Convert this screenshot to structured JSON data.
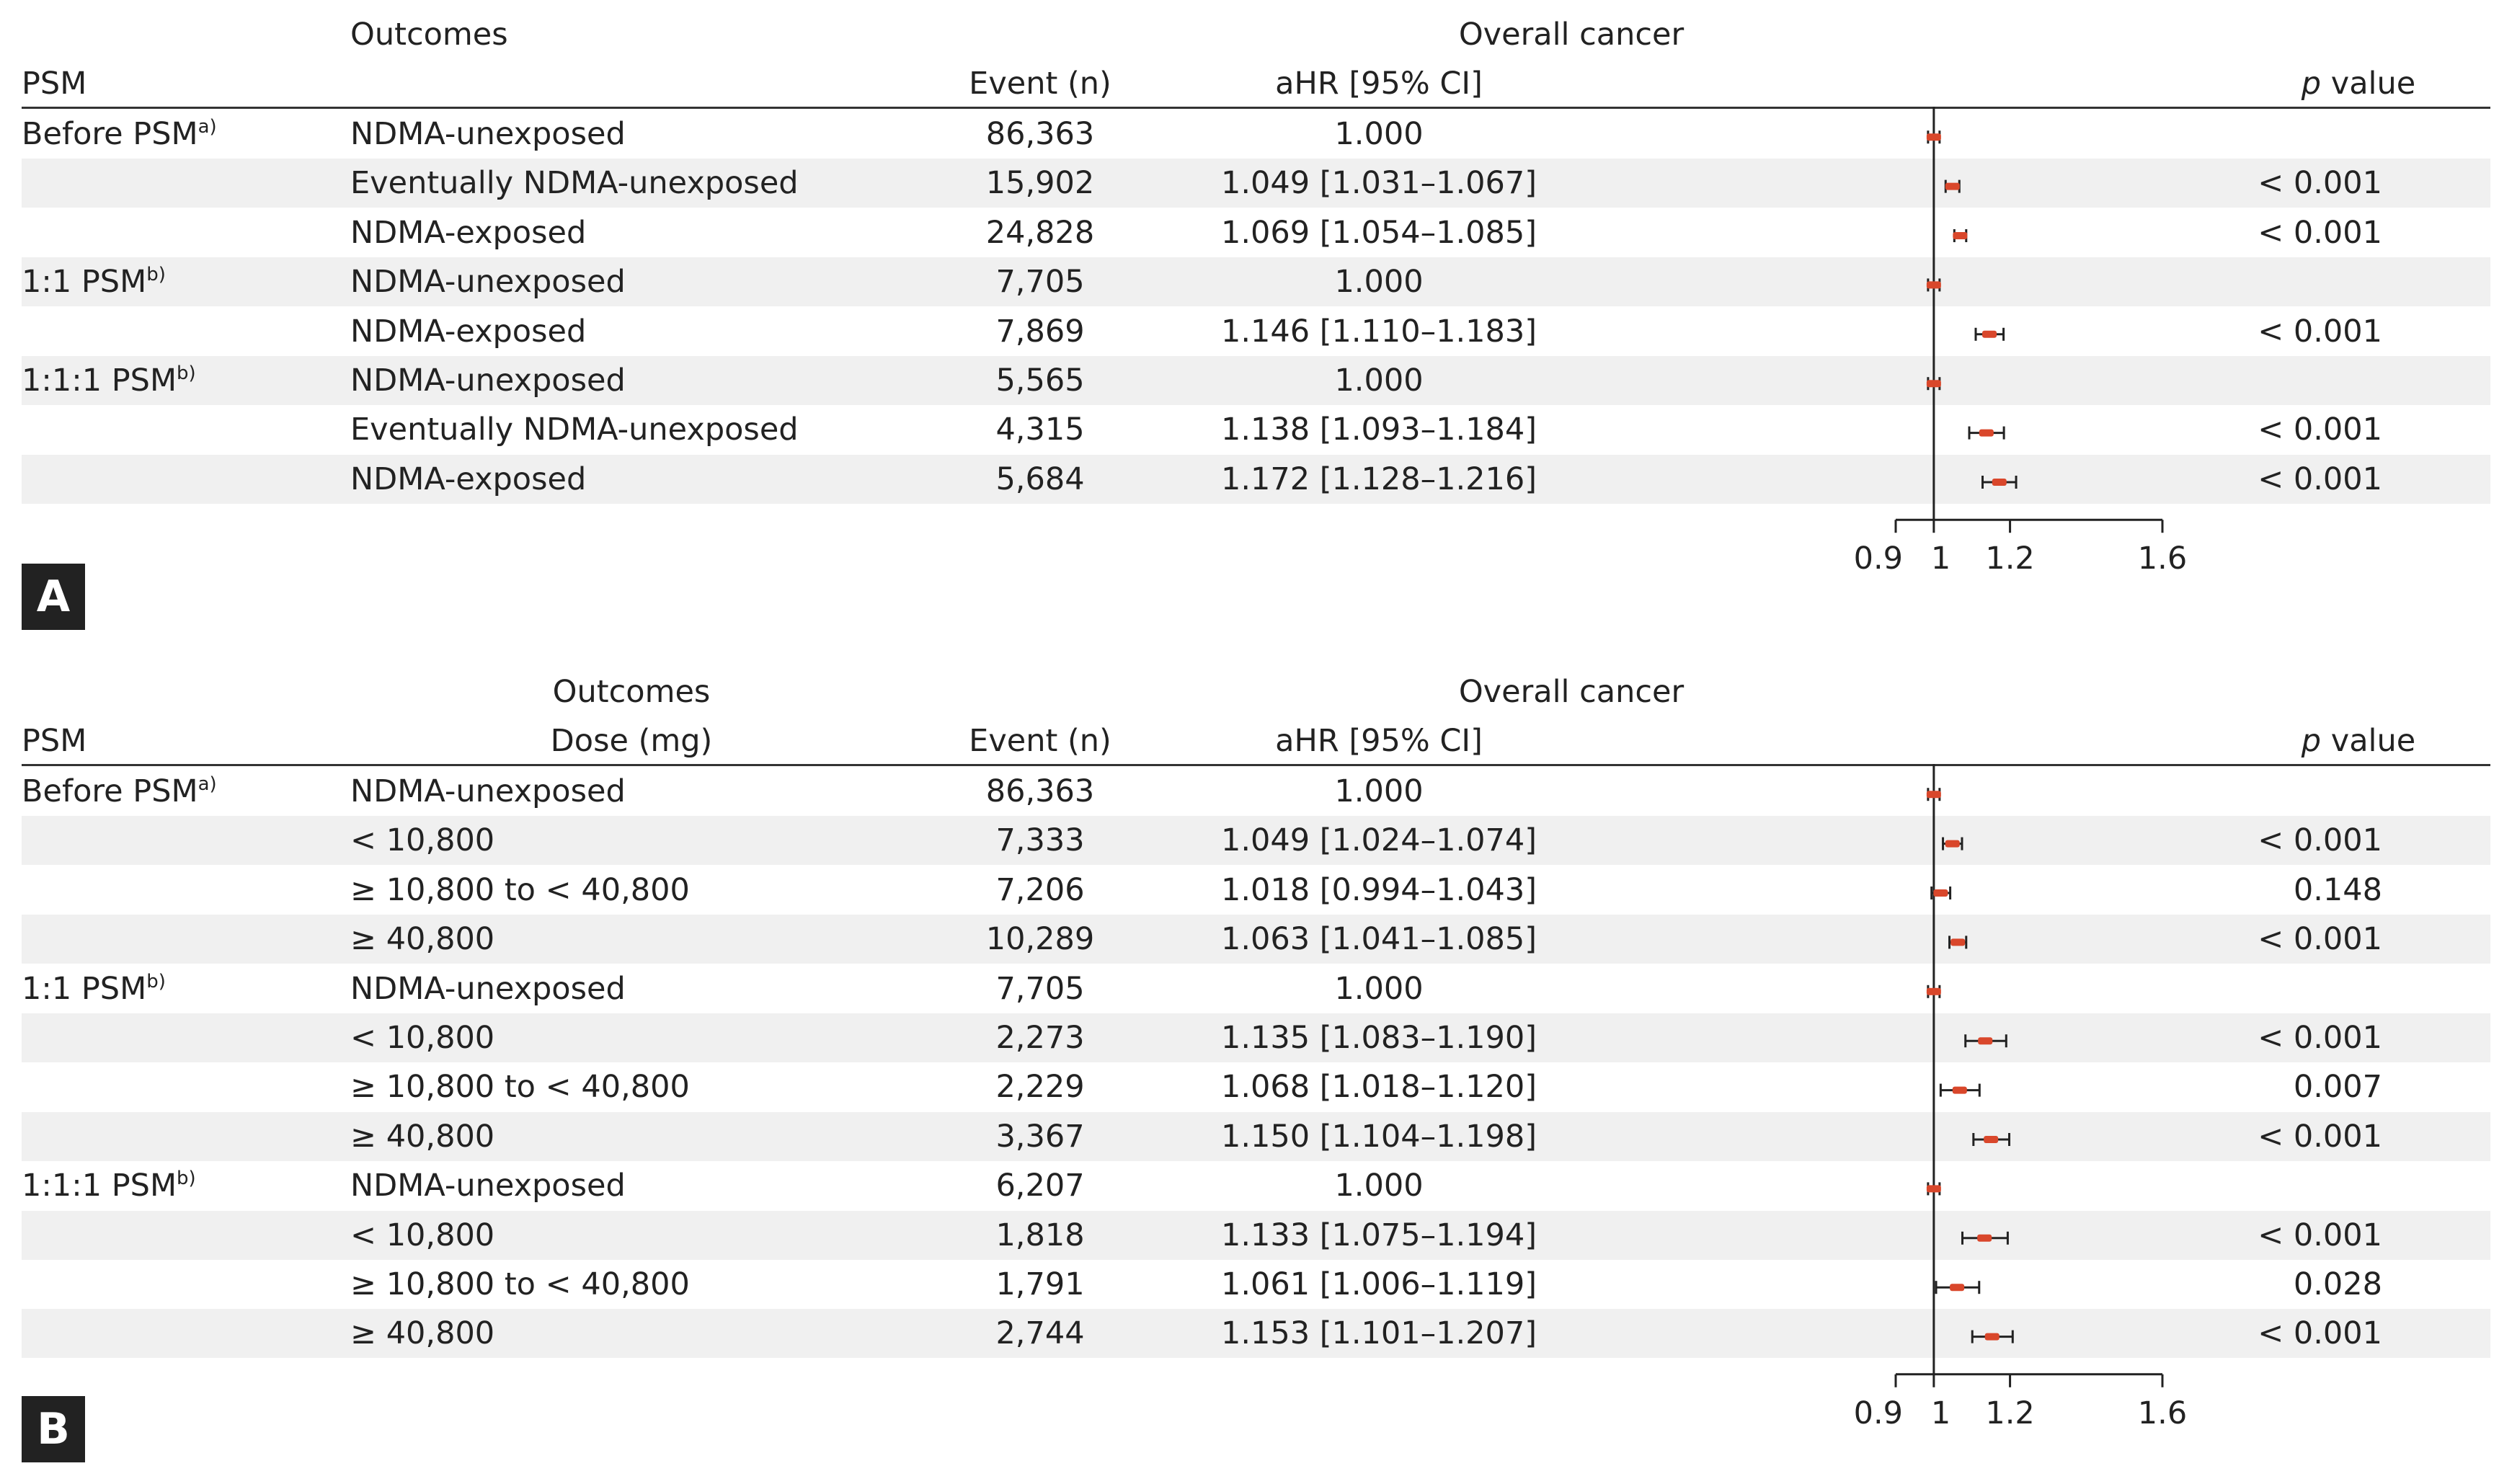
{
  "panels": [
    {
      "tag": "A",
      "headers": {
        "psm": "PSM",
        "outcomes": "Outcomes",
        "outcomes_sub": "",
        "event": "Event (n)",
        "outcome_group": "Overall cancer",
        "ahr": "aHR [95% CI]",
        "p_italic": "p",
        "p_rest": " value"
      },
      "rows": [
        {
          "psm": "Before PSM",
          "sup": "a)",
          "label": "NDMA-unexposed",
          "event": "86,363",
          "ahr": "1.000",
          "p": "",
          "shaded": false
        },
        {
          "psm": "",
          "sup": "",
          "label": "Eventually NDMA-unexposed",
          "event": "15,902",
          "ahr": "1.049 [1.031–1.067]",
          "p": "< 0.001",
          "shaded": true
        },
        {
          "psm": "",
          "sup": "",
          "label": "NDMA-exposed",
          "event": "24,828",
          "ahr": "1.069 [1.054–1.085]",
          "p": "< 0.001",
          "shaded": false
        },
        {
          "psm": "1:1 PSM",
          "sup": "b)",
          "label": "NDMA-unexposed",
          "event": "7,705",
          "ahr": "1.000",
          "p": "",
          "shaded": true
        },
        {
          "psm": "",
          "sup": "",
          "label": "NDMA-exposed",
          "event": "7,869",
          "ahr": "1.146 [1.110–1.183]",
          "p": "< 0.001",
          "shaded": false
        },
        {
          "psm": "1:1:1 PSM",
          "sup": "b)",
          "label": "NDMA-unexposed",
          "event": "5,565",
          "ahr": "1.000",
          "p": "",
          "shaded": true
        },
        {
          "psm": "",
          "sup": "",
          "label": "Eventually NDMA-unexposed",
          "event": "4,315",
          "ahr": "1.138 [1.093–1.184]",
          "p": "< 0.001",
          "shaded": false
        },
        {
          "psm": "",
          "sup": "",
          "label": "NDMA-exposed",
          "event": "5,684",
          "ahr": "1.172 [1.128–1.216]",
          "p": "< 0.001",
          "shaded": true
        }
      ]
    },
    {
      "tag": "B",
      "headers": {
        "psm": "PSM",
        "outcomes": "Outcomes",
        "outcomes_sub": "Dose (mg)",
        "event": "Event (n)",
        "outcome_group": "Overall cancer",
        "ahr": "aHR [95% CI]",
        "p_italic": "p",
        "p_rest": " value"
      },
      "rows": [
        {
          "psm": "Before PSM",
          "sup": "a)",
          "label": "NDMA-unexposed",
          "event": "86,363",
          "ahr": "1.000",
          "p": "",
          "shaded": false
        },
        {
          "psm": "",
          "sup": "",
          "label": "< 10,800",
          "event": "7,333",
          "ahr": "1.049 [1.024–1.074]",
          "p": "< 0.001",
          "shaded": true
        },
        {
          "psm": "",
          "sup": "",
          "label": "≥ 10,800 to < 40,800",
          "event": "7,206",
          "ahr": "1.018 [0.994–1.043]",
          "p": "0.148",
          "shaded": false
        },
        {
          "psm": "",
          "sup": "",
          "label": "≥ 40,800",
          "event": "10,289",
          "ahr": "1.063 [1.041–1.085]",
          "p": "< 0.001",
          "shaded": true
        },
        {
          "psm": "1:1 PSM",
          "sup": "b)",
          "label": "NDMA-unexposed",
          "event": "7,705",
          "ahr": "1.000",
          "p": "",
          "shaded": false
        },
        {
          "psm": "",
          "sup": "",
          "label": "< 10,800",
          "event": "2,273",
          "ahr": "1.135 [1.083–1.190]",
          "p": "< 0.001",
          "shaded": true
        },
        {
          "psm": "",
          "sup": "",
          "label": "≥ 10,800 to < 40,800",
          "event": "2,229",
          "ahr": "1.068 [1.018–1.120]",
          "p": "0.007",
          "shaded": false
        },
        {
          "psm": "",
          "sup": "",
          "label": "≥ 40,800",
          "event": "3,367",
          "ahr": "1.150 [1.104–1.198]",
          "p": "< 0.001",
          "shaded": true
        },
        {
          "psm": "1:1:1 PSM",
          "sup": "b)",
          "label": "NDMA-unexposed",
          "event": "6,207",
          "ahr": "1.000",
          "p": "",
          "shaded": false
        },
        {
          "psm": "",
          "sup": "",
          "label": "< 10,800",
          "event": "1,818",
          "ahr": "1.133 [1.075–1.194]",
          "p": "< 0.001",
          "shaded": true
        },
        {
          "psm": "",
          "sup": "",
          "label": "≥ 10,800 to < 40,800",
          "event": "1,791",
          "ahr": "1.061 [1.006–1.119]",
          "p": "0.028",
          "shaded": false
        },
        {
          "psm": "",
          "sup": "",
          "label": "≥ 40,800",
          "event": "2,744",
          "ahr": "1.153 [1.101–1.207]",
          "p": "< 0.001",
          "shaded": true
        }
      ]
    }
  ],
  "chart_data": [
    {
      "type": "forest",
      "panel": "A",
      "xlim": [
        0.9,
        1.6
      ],
      "ticks": [
        0.9,
        1,
        1.2,
        1.6
      ],
      "tick_labels": [
        "0.9",
        "1",
        "1.2",
        "1.6"
      ],
      "reference_line": 1.0,
      "marker_color": "#d9472b",
      "points": [
        {
          "est": 1.0,
          "lo": 1.0,
          "hi": 1.0
        },
        {
          "est": 1.049,
          "lo": 1.031,
          "hi": 1.067
        },
        {
          "est": 1.069,
          "lo": 1.054,
          "hi": 1.085
        },
        {
          "est": 1.0,
          "lo": 1.0,
          "hi": 1.0
        },
        {
          "est": 1.146,
          "lo": 1.11,
          "hi": 1.183
        },
        {
          "est": 1.0,
          "lo": 1.0,
          "hi": 1.0
        },
        {
          "est": 1.138,
          "lo": 1.093,
          "hi": 1.184
        },
        {
          "est": 1.172,
          "lo": 1.128,
          "hi": 1.216
        }
      ]
    },
    {
      "type": "forest",
      "panel": "B",
      "xlim": [
        0.9,
        1.6
      ],
      "ticks": [
        0.9,
        1,
        1.2,
        1.6
      ],
      "tick_labels": [
        "0.9",
        "1",
        "1.2",
        "1.6"
      ],
      "reference_line": 1.0,
      "marker_color": "#d9472b",
      "points": [
        {
          "est": 1.0,
          "lo": 1.0,
          "hi": 1.0
        },
        {
          "est": 1.049,
          "lo": 1.024,
          "hi": 1.074
        },
        {
          "est": 1.018,
          "lo": 0.994,
          "hi": 1.043
        },
        {
          "est": 1.063,
          "lo": 1.041,
          "hi": 1.085
        },
        {
          "est": 1.0,
          "lo": 1.0,
          "hi": 1.0
        },
        {
          "est": 1.135,
          "lo": 1.083,
          "hi": 1.19
        },
        {
          "est": 1.068,
          "lo": 1.018,
          "hi": 1.12
        },
        {
          "est": 1.15,
          "lo": 1.104,
          "hi": 1.198
        },
        {
          "est": 1.0,
          "lo": 1.0,
          "hi": 1.0
        },
        {
          "est": 1.133,
          "lo": 1.075,
          "hi": 1.194
        },
        {
          "est": 1.061,
          "lo": 1.006,
          "hi": 1.119
        },
        {
          "est": 1.153,
          "lo": 1.101,
          "hi": 1.207
        }
      ]
    }
  ]
}
